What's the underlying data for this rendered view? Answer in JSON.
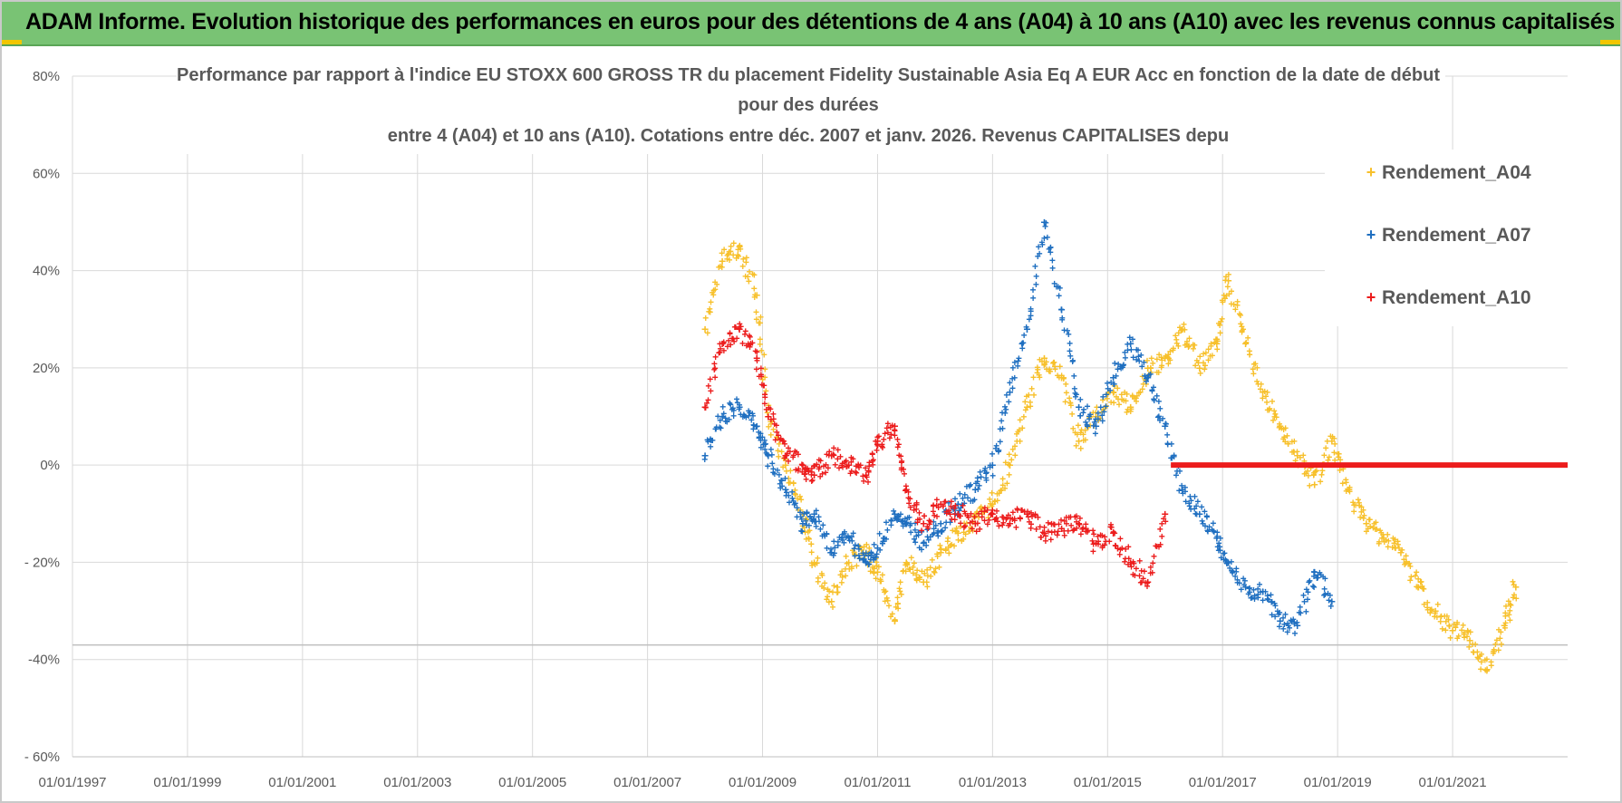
{
  "banner": {
    "title": "ADAM Informe. Evolution historique des performances en euros pour des détentions de 4 ans (A04) à 10 ans (A10) avec les revenus connus capitalisés"
  },
  "colors": {
    "A04": "#f7c02b",
    "A07": "#1f6fc0",
    "A10": "#ec1c1c",
    "grid": "#d9d9d9",
    "text": "#595959"
  },
  "chart_data": {
    "type": "scatter",
    "title_lines": [
      "Performance par rapport à l'indice EU STOXX 600 GROSS TR  du placement Fidelity Sustainable Asia Eq A EUR Acc en fonction de la date de début",
      "pour des durées",
      "entre 4 (A04) et 10 ans (A10). Cotations entre déc. 2007 et janv. 2026. Revenus CAPITALISES depu"
    ],
    "xlabel": "",
    "ylabel": "",
    "xlim": [
      1997.0,
      2023.0
    ],
    "ylim": [
      -60,
      80
    ],
    "y_ticks": [
      -60,
      -40,
      -20,
      0,
      20,
      40,
      60,
      80
    ],
    "y_tick_labels": [
      "- 60%",
      "-40%",
      "- 20%",
      "0%",
      "20%",
      "40%",
      "60%",
      "80%"
    ],
    "x_ticks": [
      1997,
      1999,
      2001,
      2003,
      2005,
      2007,
      2009,
      2011,
      2013,
      2015,
      2017,
      2019,
      2021
    ],
    "x_tick_labels": [
      "01/01/1997",
      "01/01/1999",
      "01/01/2001",
      "01/01/2003",
      "01/01/2005",
      "01/01/2007",
      "01/01/2009",
      "01/01/2011",
      "01/01/2013",
      "01/01/2015",
      "01/01/2017",
      "01/01/2019",
      "01/01/2021"
    ],
    "legend_position": "top-right",
    "series": [
      {
        "name": "Rendement_A04",
        "color": "#f7c02b",
        "x": [
          2008.0,
          2008.3,
          2008.6,
          2008.9,
          2009.1,
          2009.4,
          2009.7,
          2009.9,
          2010.2,
          2010.5,
          2010.8,
          2011.0,
          2011.3,
          2011.5,
          2011.8,
          2012.1,
          2012.4,
          2012.7,
          2013.0,
          2013.3,
          2013.6,
          2013.9,
          2014.2,
          2014.5,
          2014.8,
          2015.1,
          2015.4,
          2015.7,
          2016.0,
          2016.3,
          2016.6,
          2016.9,
          2017.1,
          2017.4,
          2017.7,
          2018.0,
          2018.3,
          2018.6,
          2018.9,
          2019.2,
          2019.5,
          2019.8,
          2020.1,
          2020.4,
          2020.7,
          2021.0,
          2021.3,
          2021.6,
          2021.9,
          2022.1
        ],
        "y": [
          28,
          42,
          45,
          35,
          10,
          0,
          -10,
          -20,
          -28,
          -20,
          -18,
          -22,
          -32,
          -20,
          -24,
          -18,
          -14,
          -12,
          -8,
          0,
          12,
          22,
          18,
          5,
          10,
          15,
          12,
          20,
          22,
          28,
          20,
          25,
          38,
          25,
          15,
          8,
          2,
          -4,
          5,
          -5,
          -12,
          -15,
          -18,
          -25,
          -30,
          -34,
          -36,
          -42,
          -33,
          -25
        ]
      },
      {
        "name": "Rendement_A07",
        "color": "#1f6fc0",
        "x": [
          2008.0,
          2008.3,
          2008.6,
          2008.9,
          2009.1,
          2009.4,
          2009.7,
          2009.9,
          2010.2,
          2010.5,
          2010.8,
          2011.0,
          2011.3,
          2011.5,
          2011.8,
          2012.1,
          2012.4,
          2012.7,
          2013.0,
          2013.3,
          2013.6,
          2013.9,
          2014.2,
          2014.5,
          2014.8,
          2015.1,
          2015.4,
          2015.7,
          2016.0,
          2016.3,
          2016.6,
          2016.9,
          2017.1,
          2017.4,
          2017.7,
          2018.0,
          2018.3,
          2018.6,
          2018.9
        ],
        "y": [
          2,
          10,
          12,
          8,
          2,
          -5,
          -12,
          -10,
          -18,
          -15,
          -20,
          -17,
          -10,
          -12,
          -16,
          -12,
          -8,
          -5,
          0,
          15,
          28,
          50,
          32,
          12,
          8,
          18,
          25,
          18,
          8,
          -5,
          -10,
          -15,
          -20,
          -25,
          -26,
          -32,
          -33,
          -22,
          -28
        ]
      },
      {
        "name": "Rendement_A10",
        "color": "#ec1c1c",
        "x": [
          2008.0,
          2008.3,
          2008.6,
          2008.9,
          2009.1,
          2009.4,
          2009.7,
          2009.9,
          2010.2,
          2010.5,
          2010.8,
          2011.0,
          2011.3,
          2011.5,
          2011.8,
          2012.1,
          2012.4,
          2012.7,
          2013.0,
          2013.3,
          2013.6,
          2013.9,
          2014.2,
          2014.5,
          2014.8,
          2015.1,
          2015.4,
          2015.7,
          2016.0
        ],
        "y": [
          12,
          25,
          28,
          22,
          10,
          2,
          0,
          -2,
          2,
          0,
          -2,
          5,
          8,
          -5,
          -12,
          -8,
          -10,
          -12,
          -10,
          -12,
          -10,
          -14,
          -13,
          -12,
          -16,
          -14,
          -20,
          -24,
          -10
        ]
      }
    ],
    "flat_segment": {
      "series": "Rendement_A10",
      "x_start": 2016.1,
      "x_end": 2023.0,
      "y": 0
    },
    "horizontal_reference_line": -37
  }
}
